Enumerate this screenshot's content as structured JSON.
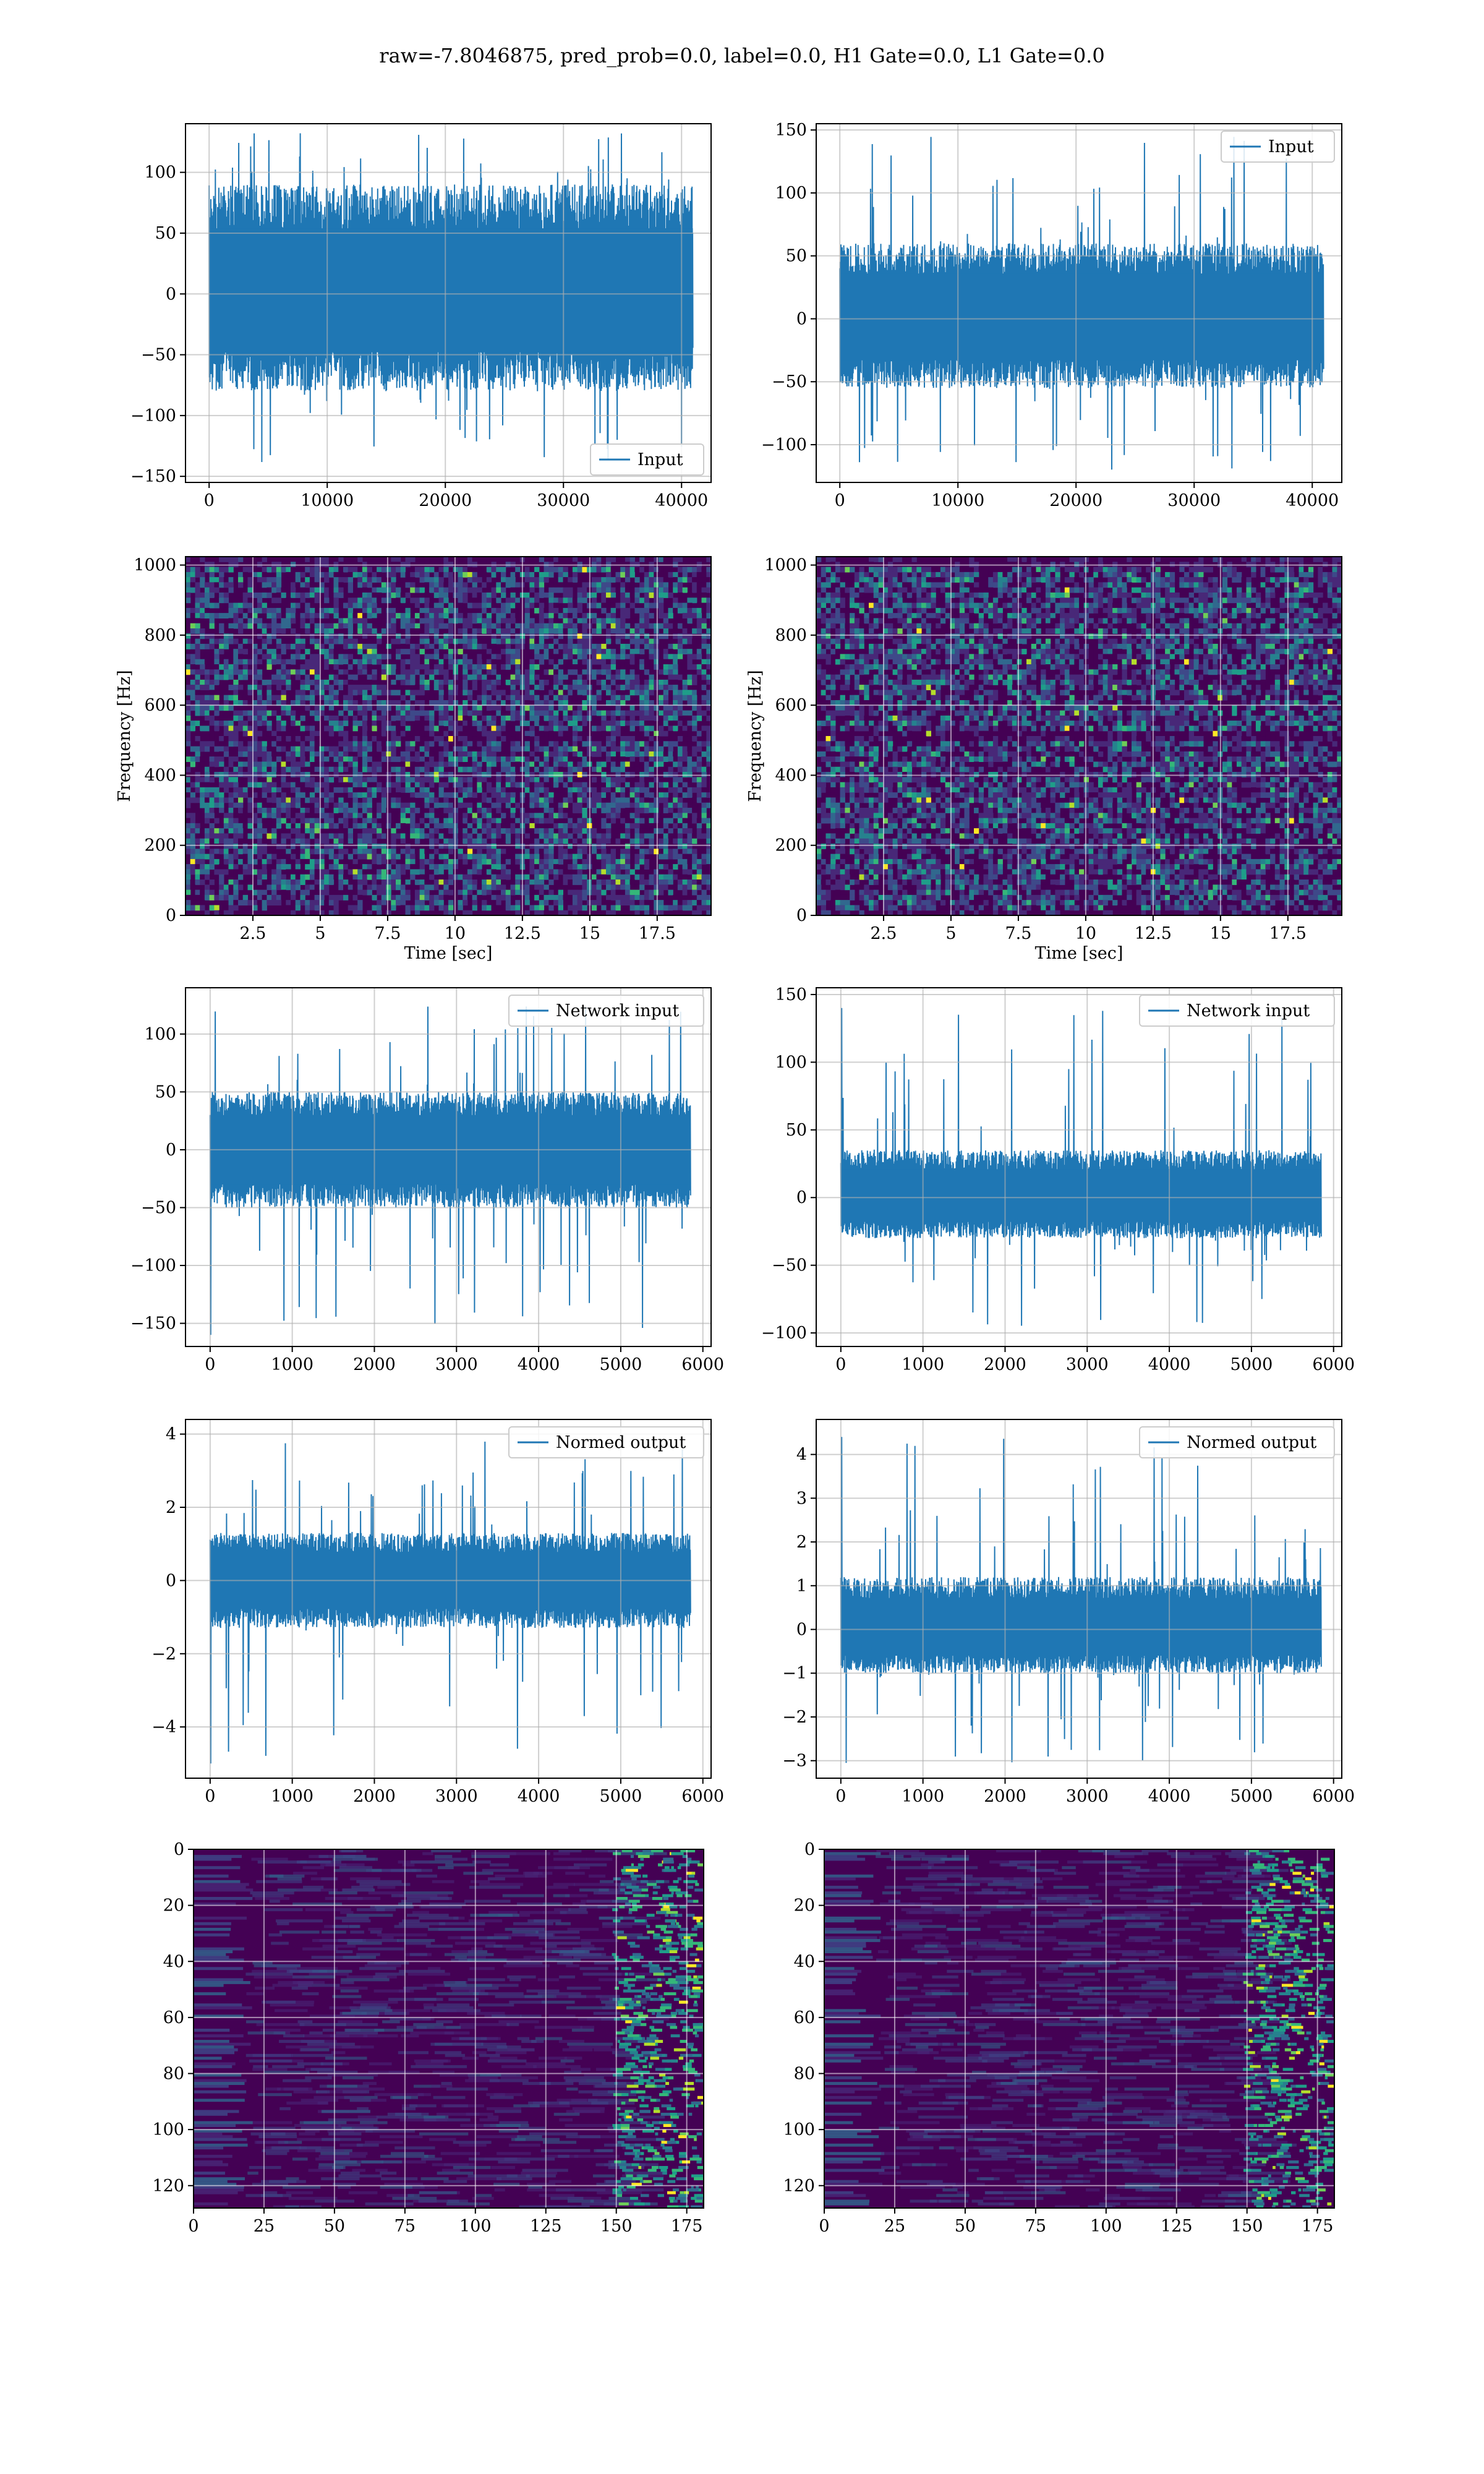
{
  "figure": {
    "suptitle": "raw=-7.8046875, pred_prob=0.0, label=0.0, H1 Gate=0.0, L1 Gate=0.0"
  },
  "colors": {
    "line": "#1f77b4",
    "viridis": [
      "#440154",
      "#482878",
      "#3e4989",
      "#31688e",
      "#26828e",
      "#1f9e89",
      "#35b779",
      "#6ece58",
      "#b5de2b",
      "#fde725"
    ]
  },
  "chart_data": [
    {
      "id": "p1",
      "type": "line",
      "panel": "row1-left",
      "legend": "Input",
      "legend_loc": "lower-right",
      "xlim": [
        -2000,
        42500
      ],
      "ylim": [
        -155,
        140
      ],
      "xticks": [
        0,
        10000,
        20000,
        30000,
        40000
      ],
      "yticks": [
        -150,
        -100,
        -50,
        0,
        50,
        100
      ],
      "x_range": [
        0,
        40960
      ],
      "envelope": {
        "body": [
          -80,
          90
        ],
        "spikes": [
          -140,
          135
        ]
      },
      "grid": true
    },
    {
      "id": "p2",
      "type": "line",
      "panel": "row1-right",
      "legend": "Input",
      "legend_loc": "upper-right",
      "xlim": [
        -2000,
        42500
      ],
      "ylim": [
        -130,
        155
      ],
      "xticks": [
        0,
        10000,
        20000,
        30000,
        40000
      ],
      "yticks": [
        -100,
        -50,
        0,
        50,
        100,
        150
      ],
      "x_range": [
        0,
        40960
      ],
      "envelope": {
        "body": [
          -55,
          60
        ],
        "spikes": [
          -120,
          145
        ]
      },
      "grid": true
    },
    {
      "id": "p3",
      "type": "heatmap",
      "panel": "row2-left",
      "xlabel": "Time [sec]",
      "ylabel": "Frequency [Hz]",
      "xlim": [
        0,
        19.5
      ],
      "ylim": [
        0,
        1024
      ],
      "xticks": [
        2.5,
        5.0,
        7.5,
        10.0,
        12.5,
        15.0,
        17.5
      ],
      "yticks": [
        0,
        200,
        400,
        600,
        800,
        1000
      ],
      "grid": true
    },
    {
      "id": "p4",
      "type": "heatmap",
      "panel": "row2-right",
      "xlabel": "Time [sec]",
      "ylabel": "Frequency [Hz]",
      "xlim": [
        0,
        19.5
      ],
      "ylim": [
        0,
        1024
      ],
      "xticks": [
        2.5,
        5.0,
        7.5,
        10.0,
        12.5,
        15.0,
        17.5
      ],
      "yticks": [
        0,
        200,
        400,
        600,
        800,
        1000
      ],
      "grid": true
    },
    {
      "id": "p5",
      "type": "line",
      "panel": "row3-left",
      "legend": "Network input",
      "legend_loc": "upper-right",
      "xlim": [
        -300,
        6100
      ],
      "ylim": [
        -170,
        140
      ],
      "xticks": [
        0,
        1000,
        2000,
        3000,
        4000,
        5000,
        6000
      ],
      "yticks": [
        -150,
        -100,
        -50,
        0,
        50,
        100
      ],
      "x_range": [
        0,
        5850
      ],
      "envelope": {
        "body": [
          -50,
          50
        ],
        "spikes": [
          -160,
          128
        ]
      },
      "grid": true
    },
    {
      "id": "p6",
      "type": "line",
      "panel": "row3-right",
      "legend": "Network input",
      "legend_loc": "upper-right",
      "xlim": [
        -300,
        6100
      ],
      "ylim": [
        -110,
        155
      ],
      "xticks": [
        0,
        1000,
        2000,
        3000,
        4000,
        5000,
        6000
      ],
      "yticks": [
        -100,
        -50,
        0,
        50,
        100,
        150
      ],
      "x_range": [
        0,
        5850
      ],
      "envelope": {
        "body": [
          -30,
          35
        ],
        "spikes": [
          -95,
          140
        ]
      },
      "grid": true
    },
    {
      "id": "p7",
      "type": "line",
      "panel": "row4-left",
      "legend": "Normed output",
      "legend_loc": "upper-right",
      "xlim": [
        -300,
        6100
      ],
      "ylim": [
        -5.4,
        4.4
      ],
      "xticks": [
        0,
        1000,
        2000,
        3000,
        4000,
        5000,
        6000
      ],
      "yticks": [
        -4,
        -2,
        0,
        2,
        4
      ],
      "x_range": [
        0,
        5850
      ],
      "envelope": {
        "body": [
          -1.3,
          1.3
        ],
        "spikes": [
          -5.0,
          4.0
        ]
      },
      "grid": true
    },
    {
      "id": "p8",
      "type": "line",
      "panel": "row4-right",
      "legend": "Normed output",
      "legend_loc": "upper-right",
      "xlim": [
        -300,
        6100
      ],
      "ylim": [
        -3.4,
        4.8
      ],
      "xticks": [
        0,
        1000,
        2000,
        3000,
        4000,
        5000,
        6000
      ],
      "yticks": [
        -3,
        -2,
        -1,
        0,
        1,
        2,
        3,
        4
      ],
      "x_range": [
        0,
        5850
      ],
      "envelope": {
        "body": [
          -1.0,
          1.2
        ],
        "spikes": [
          -3.1,
          4.4
        ]
      },
      "grid": true
    },
    {
      "id": "p9",
      "type": "heatmap",
      "panel": "row5-left",
      "xlim": [
        0,
        181
      ],
      "ylim": [
        128,
        0
      ],
      "xticks": [
        0,
        25,
        50,
        75,
        100,
        125,
        150,
        175
      ],
      "yticks": [
        0,
        20,
        40,
        60,
        80,
        100,
        120
      ],
      "grid": true
    },
    {
      "id": "p10",
      "type": "heatmap",
      "panel": "row5-right",
      "xlim": [
        0,
        181
      ],
      "ylim": [
        128,
        0
      ],
      "xticks": [
        0,
        25,
        50,
        75,
        100,
        125,
        150,
        175
      ],
      "yticks": [
        0,
        20,
        40,
        60,
        80,
        100,
        120
      ],
      "grid": true
    }
  ]
}
